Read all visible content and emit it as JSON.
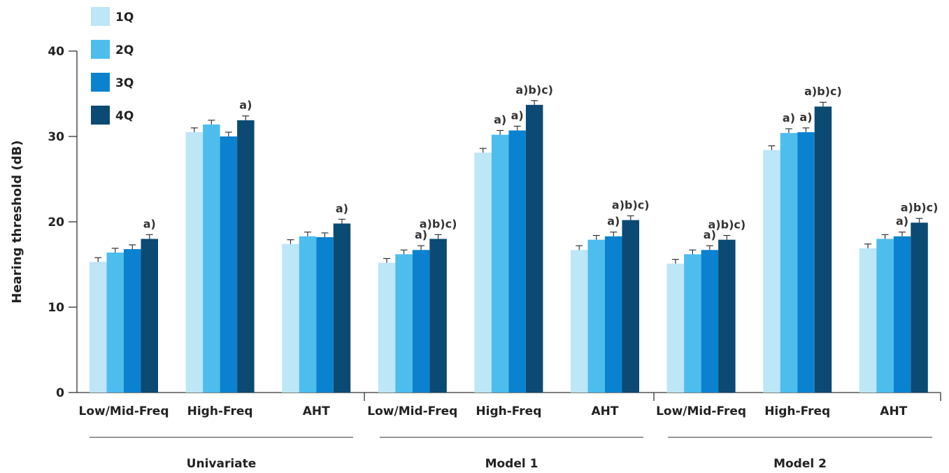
{
  "chart_data": {
    "type": "bar",
    "ylabel": "Hearing threshold (dB)",
    "ylim": [
      0,
      40
    ],
    "yticks": [
      "0",
      "10",
      "20",
      "30",
      "40"
    ],
    "legend": {
      "position": "top-left",
      "items": [
        {
          "name": "1Q",
          "color": "#bde6f7"
        },
        {
          "name": "2Q",
          "color": "#4dbdee"
        },
        {
          "name": "3Q",
          "color": "#0b82cf"
        },
        {
          "name": "4Q",
          "color": "#0a4a73"
        }
      ]
    },
    "groups": [
      {
        "name": "Univariate",
        "categories": [
          {
            "label": "Low/Mid-Freq",
            "values": [
              15.3,
              16.4,
              16.8,
              18.0
            ],
            "errors": [
              0.5,
              0.5,
              0.5,
              0.5
            ],
            "sig": [
              "",
              "",
              "",
              "a)"
            ]
          },
          {
            "label": "High-Freq",
            "values": [
              30.5,
              31.4,
              30.0,
              31.9
            ],
            "errors": [
              0.5,
              0.5,
              0.5,
              0.5
            ],
            "sig": [
              "",
              "",
              "",
              "a)"
            ]
          },
          {
            "label": "AHT",
            "values": [
              17.4,
              18.3,
              18.2,
              19.8
            ],
            "errors": [
              0.5,
              0.5,
              0.5,
              0.5
            ],
            "sig": [
              "",
              "",
              "",
              "a)"
            ]
          }
        ]
      },
      {
        "name": "Model 1",
        "categories": [
          {
            "label": "Low/Mid-Freq",
            "values": [
              15.2,
              16.2,
              16.7,
              18.0
            ],
            "errors": [
              0.5,
              0.5,
              0.5,
              0.5
            ],
            "sig": [
              "",
              "",
              "a)",
              "a)b)c)"
            ]
          },
          {
            "label": "High-Freq",
            "values": [
              28.1,
              30.2,
              30.7,
              33.7
            ],
            "errors": [
              0.5,
              0.5,
              0.5,
              0.5
            ],
            "sig": [
              "",
              "a)",
              "a)",
              "a)b)c)"
            ]
          },
          {
            "label": "AHT",
            "values": [
              16.7,
              17.9,
              18.3,
              20.2
            ],
            "errors": [
              0.5,
              0.5,
              0.5,
              0.5
            ],
            "sig": [
              "",
              "",
              "a)",
              "a)b)c)"
            ]
          }
        ]
      },
      {
        "name": "Model 2",
        "categories": [
          {
            "label": "Low/Mid-Freq",
            "values": [
              15.1,
              16.2,
              16.7,
              17.9
            ],
            "errors": [
              0.5,
              0.5,
              0.5,
              0.5
            ],
            "sig": [
              "",
              "",
              "a)",
              "a)b)c)"
            ]
          },
          {
            "label": "High-Freq",
            "values": [
              28.4,
              30.4,
              30.5,
              33.5
            ],
            "errors": [
              0.5,
              0.5,
              0.5,
              0.5
            ],
            "sig": [
              "",
              "a)",
              "a)",
              "a)b)c)"
            ]
          },
          {
            "label": "AHT",
            "values": [
              16.9,
              18.0,
              18.3,
              19.9
            ],
            "errors": [
              0.5,
              0.5,
              0.5,
              0.5
            ],
            "sig": [
              "",
              "",
              "a)",
              "a)b)c)"
            ]
          }
        ]
      }
    ],
    "grid": false
  }
}
